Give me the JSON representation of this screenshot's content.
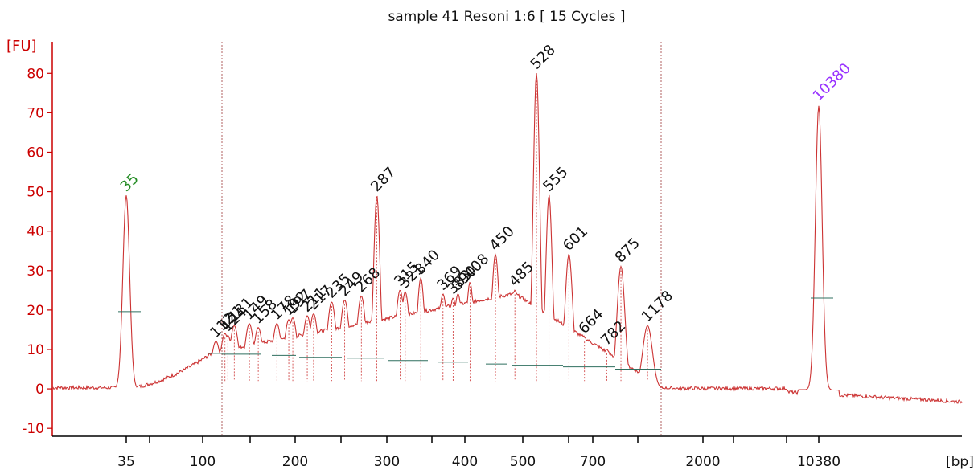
{
  "chart_data": {
    "type": "line",
    "title": "sample 41 Resoni 1:6  [ 15 Cycles ]",
    "ylabel": "[FU]",
    "xlabel": "[bp]",
    "ylim": [
      -12,
      88
    ],
    "yticks": [
      -10,
      0,
      10,
      20,
      30,
      40,
      50,
      60,
      70,
      80
    ],
    "xticks": [
      "35",
      "100",
      "200",
      "300",
      "400",
      "500",
      "700",
      "2000",
      "10380"
    ],
    "grid": false,
    "colors": {
      "trace": "#cc3333",
      "axis": "#cc0000",
      "lower_marker": "#228B22",
      "upper_marker": "#9933ff",
      "baseline": "#2f6f5f"
    },
    "markers": [
      {
        "label": "35",
        "bp": 35,
        "fu": 49,
        "role": "lower marker"
      },
      {
        "label": "10380",
        "bp": 10380,
        "fu": 72,
        "role": "upper marker"
      }
    ],
    "peaks": [
      {
        "label": "112",
        "bp": 112,
        "fu": 12
      },
      {
        "label": "121",
        "bp": 121,
        "fu": 14
      },
      {
        "label": "124",
        "bp": 124,
        "fu": 13.5
      },
      {
        "label": "131",
        "bp": 131,
        "fu": 16
      },
      {
        "label": "149",
        "bp": 149,
        "fu": 16.5
      },
      {
        "label": "158",
        "bp": 158,
        "fu": 15.5
      },
      {
        "label": "178",
        "bp": 178,
        "fu": 16.5
      },
      {
        "label": "192",
        "bp": 192,
        "fu": 17.5
      },
      {
        "label": "197",
        "bp": 197,
        "fu": 18
      },
      {
        "label": "211",
        "bp": 211,
        "fu": 18.5
      },
      {
        "label": "217",
        "bp": 217,
        "fu": 19
      },
      {
        "label": "235",
        "bp": 235,
        "fu": 22
      },
      {
        "label": "249",
        "bp": 249,
        "fu": 22.5
      },
      {
        "label": "268",
        "bp": 268,
        "fu": 23.5
      },
      {
        "label": "287",
        "bp": 287,
        "fu": 49
      },
      {
        "label": "315",
        "bp": 315,
        "fu": 25
      },
      {
        "label": "321",
        "bp": 321,
        "fu": 24.5
      },
      {
        "label": "340",
        "bp": 340,
        "fu": 28
      },
      {
        "label": "369",
        "bp": 369,
        "fu": 24
      },
      {
        "label": "383",
        "bp": 383,
        "fu": 23
      },
      {
        "label": "390",
        "bp": 390,
        "fu": 24
      },
      {
        "label": "408",
        "bp": 408,
        "fu": 27
      },
      {
        "label": "450",
        "bp": 450,
        "fu": 34
      },
      {
        "label": "485",
        "bp": 485,
        "fu": 25
      },
      {
        "label": "528",
        "bp": 528,
        "fu": 80
      },
      {
        "label": "555",
        "bp": 555,
        "fu": 49
      },
      {
        "label": "601",
        "bp": 601,
        "fu": 34
      },
      {
        "label": "664",
        "bp": 664,
        "fu": 13
      },
      {
        "label": "782",
        "bp": 782,
        "fu": 10
      },
      {
        "label": "875",
        "bp": 875,
        "fu": 31
      },
      {
        "label": "1178",
        "bp": 1178,
        "fu": 16
      }
    ]
  }
}
